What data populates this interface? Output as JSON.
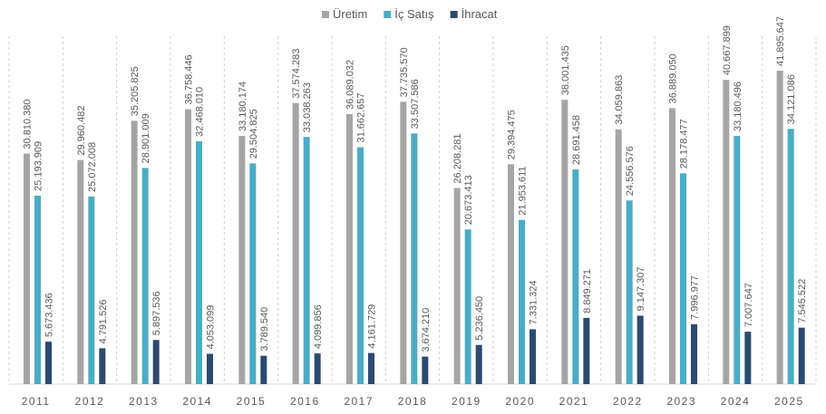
{
  "chart_data": {
    "type": "bar",
    "categories": [
      "2011",
      "2012",
      "2013",
      "2014",
      "2015",
      "2016",
      "2017",
      "2018",
      "2019",
      "2020",
      "2021",
      "2022",
      "2023",
      "2024",
      "2025"
    ],
    "series": [
      {
        "name": "Üretim",
        "color": "#a5a5a5",
        "values": [
          30810380,
          29960482,
          35205825,
          36758446,
          33180174,
          37574283,
          36089032,
          37735570,
          26208281,
          29394475,
          38001435,
          34059863,
          36889050,
          40667899,
          41895647
        ],
        "value_labels": [
          "30.810.380",
          "29.960.482",
          "35.205.825",
          "36.758.446",
          "33.180.174",
          "37.574.283",
          "36.089.032",
          "37.735.570",
          "26.208.281",
          "29.394.475",
          "38.001.435",
          "34.059.863",
          "36.889.050",
          "40.667.899",
          "41.895.647"
        ]
      },
      {
        "name": "İç Satış",
        "color": "#4bacc6",
        "values": [
          25193909,
          25072008,
          28901009,
          32468010,
          29504825,
          33038263,
          31662657,
          33507586,
          20673413,
          21953611,
          28691458,
          24556576,
          28178477,
          33180496,
          34121086
        ],
        "value_labels": [
          "25.193.909",
          "25.072.008",
          "28.901.009",
          "32.468.010",
          "29.504.825",
          "33.038.263",
          "31.662.657",
          "33.507.586",
          "20.673.413",
          "21.953.611",
          "28.691.458",
          "24.556.576",
          "28.178.477",
          "33.180.496",
          "34.121.086"
        ]
      },
      {
        "name": "İhracat",
        "color": "#2c4a70",
        "values": [
          5673436,
          4791526,
          5897536,
          4053099,
          3789540,
          4099856,
          4161729,
          3674210,
          5236450,
          7331324,
          8849271,
          9147307,
          7996977,
          7007647,
          7545522
        ],
        "value_labels": [
          "5.673.436",
          "4.791.526",
          "5.897.536",
          "4.053.099",
          "3.789.540",
          "4.099.856",
          "4.161.729",
          "3.674.210",
          "5.236.450",
          "7.331.324",
          "8.849.271",
          "9.147.307",
          "7.996.977",
          "7.007.647",
          "7.545.522"
        ]
      }
    ]
  }
}
